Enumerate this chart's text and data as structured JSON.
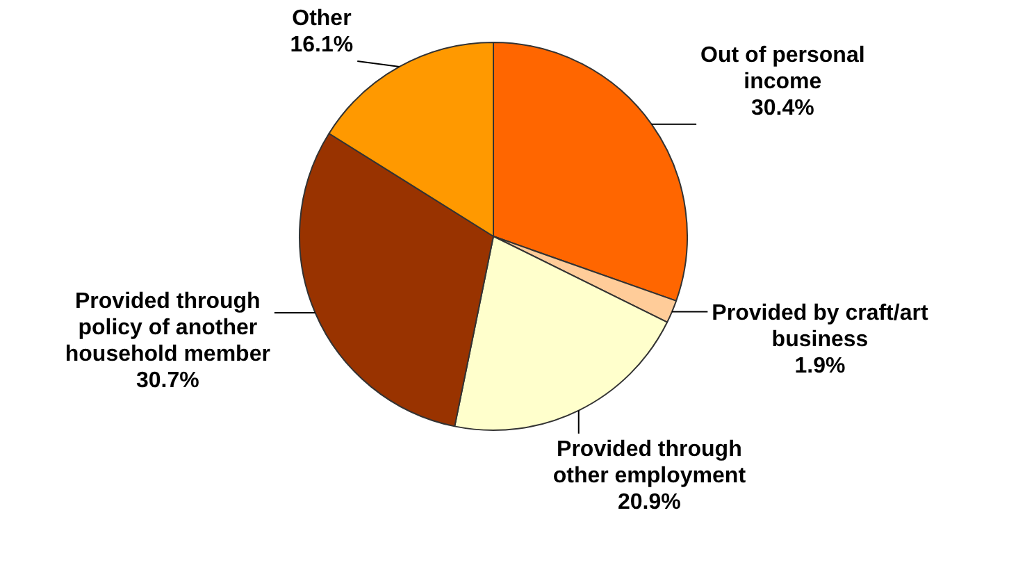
{
  "chart_data": {
    "type": "pie",
    "categories": [
      "Out of personal income",
      "Provided by craft/art business",
      "Provided through other employment",
      "Provided through policy of another household member",
      "Other"
    ],
    "values": [
      30.4,
      1.9,
      20.9,
      30.7,
      16.1
    ],
    "value_labels": [
      "30.4%",
      "1.9%",
      "20.9%",
      "30.7%",
      "16.1%"
    ],
    "colors": [
      "#ff6600",
      "#ffcc99",
      "#ffffcc",
      "#993300",
      "#ff9900"
    ],
    "legend": false
  }
}
